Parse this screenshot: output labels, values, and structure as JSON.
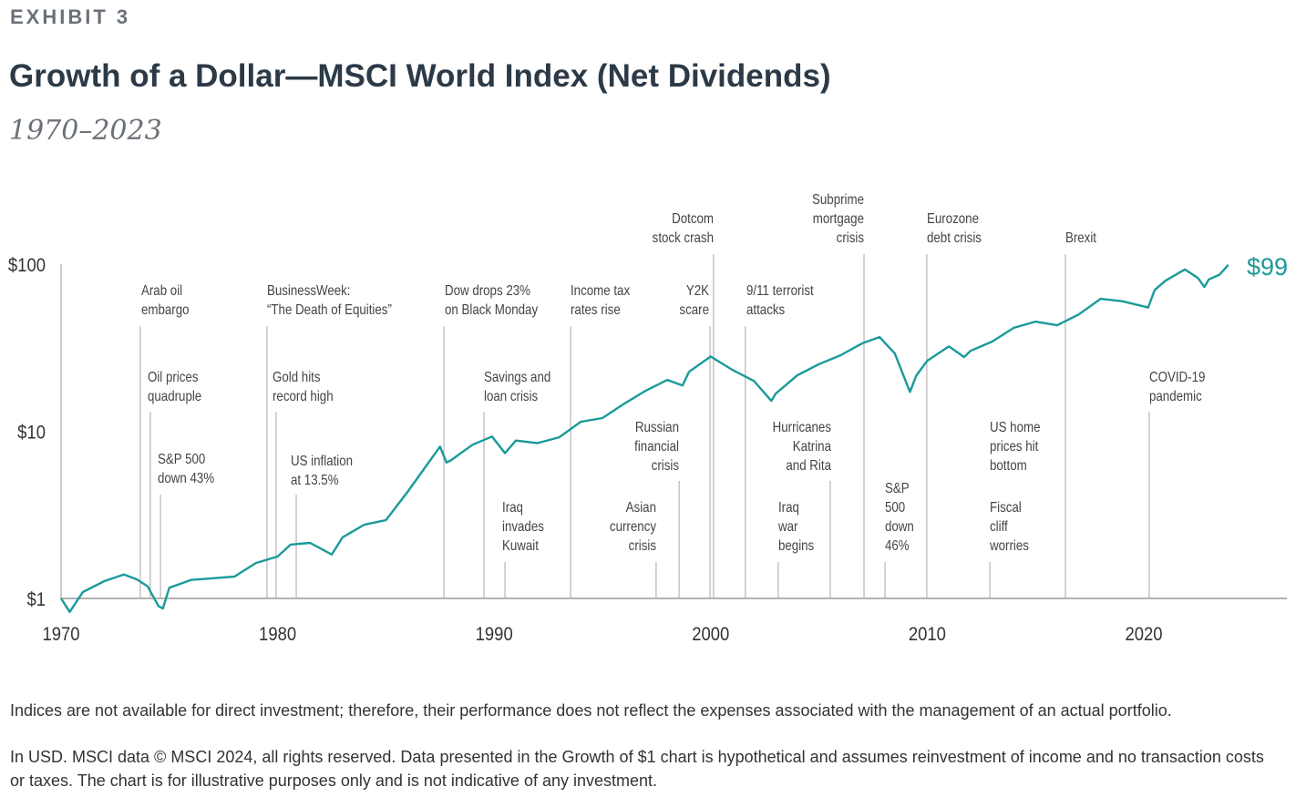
{
  "header": {
    "exhibit": "EXHIBIT 3",
    "title": "Growth of a Dollar—MSCI World Index (Net Dividends)",
    "subtitle": "1970–2023"
  },
  "chart_data": {
    "type": "line",
    "title": "Growth of a Dollar—MSCI World Index (Net Dividends)",
    "subtitle": "1970–2023",
    "y_scale": "log",
    "ylim": [
      0.8,
      110
    ],
    "xlim": [
      1970,
      2026.7
    ],
    "y_ticks": [
      {
        "value": 1,
        "label": "$1"
      },
      {
        "value": 10,
        "label": "$10"
      },
      {
        "value": 100,
        "label": "$100"
      }
    ],
    "x_ticks": [
      1970,
      1980,
      1990,
      2000,
      2010,
      2020
    ],
    "grid": false,
    "line_color": "#1a9a9a",
    "end_label": "$99",
    "series": [
      {
        "x": [
          1970,
          1970.4,
          1971,
          1972,
          1972.9,
          1973.5,
          1974,
          1974.5,
          1974.7,
          1975,
          1976,
          1977,
          1978,
          1979,
          1980,
          1980.6,
          1981.5,
          1982.5,
          1983,
          1984,
          1985,
          1986,
          1987.5,
          1987.8,
          1988,
          1989,
          1989.9,
          1990.5,
          1991,
          1992,
          1993,
          1994,
          1995,
          1996,
          1997,
          1998,
          1998.7,
          1999,
          2000,
          2001,
          2002,
          2002.8,
          2003,
          2004,
          2005,
          2006,
          2007,
          2007.8,
          2008.5,
          2009.2,
          2009.5,
          2010,
          2011,
          2011.7,
          2012,
          2013,
          2014,
          2015,
          2016,
          2017,
          2018,
          2019,
          2020.2,
          2020.5,
          2021,
          2021.9,
          2022.5,
          2022.8,
          2023,
          2023.5,
          2023.9
        ],
        "y": [
          1.0,
          0.83,
          1.09,
          1.27,
          1.39,
          1.3,
          1.18,
          0.9,
          0.87,
          1.16,
          1.29,
          1.32,
          1.35,
          1.63,
          1.78,
          2.1,
          2.15,
          1.83,
          2.32,
          2.76,
          2.94,
          4.34,
          8.1,
          6.5,
          6.7,
          8.3,
          9.3,
          7.4,
          8.8,
          8.5,
          9.2,
          11.4,
          12,
          14.6,
          17.5,
          20.3,
          18.8,
          22.7,
          28,
          23.3,
          20.0,
          15.2,
          16.8,
          21.6,
          25.2,
          28.5,
          33.6,
          36.6,
          29.2,
          17.2,
          21.6,
          26.4,
          32.2,
          27.8,
          30.3,
          34.4,
          41.6,
          45.3,
          43.1,
          50,
          62,
          60,
          55,
          70,
          79.6,
          93,
          82.6,
          73,
          81,
          86.6,
          99
        ]
      }
    ],
    "annotations": [
      {
        "year": 1973.66,
        "lines": [
          "Arab oil",
          "embargo"
        ]
      },
      {
        "year": 1974.12,
        "lines": [
          "Oil prices",
          "quadruple"
        ]
      },
      {
        "year": 1974.59,
        "lines": [
          "S&P 500",
          "down 43%"
        ]
      },
      {
        "year": 1979.51,
        "lines": [
          "BusinessWeek:",
          "“The Death  of Equities”"
        ]
      },
      {
        "year": 1979.93,
        "lines": [
          "Gold hits",
          "record high"
        ]
      },
      {
        "year": 1980.86,
        "lines": [
          "US inflation",
          "at 13.5%"
        ]
      },
      {
        "year": 1987.68,
        "lines": [
          "Dow drops 23%",
          "on Black Monday"
        ]
      },
      {
        "year": 1989.53,
        "lines": [
          "Savings and",
          "loan crisis"
        ]
      },
      {
        "year": 1990.5,
        "lines": [
          "Iraq",
          "invades",
          "Kuwait"
        ]
      },
      {
        "year": 1993.53,
        "lines": [
          "Income tax",
          "rates rise"
        ]
      },
      {
        "year": 1997.48,
        "lines": [
          "Asian",
          "currency",
          "crisis"
        ]
      },
      {
        "year": 1998.54,
        "lines": [
          "Russian",
          "financial",
          "crisis"
        ]
      },
      {
        "year": 1999.97,
        "lines": [
          "Y2K",
          "scare"
        ]
      },
      {
        "year": 2000.13,
        "lines": [
          "Dotcom",
          "stock crash"
        ]
      },
      {
        "year": 2001.6,
        "lines": [
          "9/11 terrorist",
          "attacks"
        ]
      },
      {
        "year": 2003.12,
        "lines": [
          "Iraq",
          "war",
          "begins"
        ]
      },
      {
        "year": 2005.52,
        "lines": [
          "Hurricanes",
          "Katrina",
          "and Rita"
        ]
      },
      {
        "year": 2007.08,
        "lines": [
          "Subprime",
          "mortgage",
          "crisis"
        ]
      },
      {
        "year": 2008.05,
        "lines": [
          "S&P",
          "500",
          "down",
          "46%"
        ]
      },
      {
        "year": 2009.98,
        "lines": [
          "Eurozone",
          "debt crisis"
        ]
      },
      {
        "year": 2012.89,
        "lines": [
          "Fiscal",
          "cliff",
          "worries"
        ]
      },
      {
        "year": null,
        "lines": [
          "US home",
          "prices hit",
          "bottom"
        ]
      },
      {
        "year": 2016.38,
        "lines": [
          "Brexit"
        ]
      },
      {
        "year": 2020.25,
        "lines": [
          "COVID-19",
          "pandemic"
        ]
      }
    ]
  },
  "notes": [
    "Indices are not available for direct investment; therefore, their performance does not reflect the expenses associated with the management of an actual portfolio.",
    "In USD. MSCI data © MSCI 2024, all rights reserved. Data presented in the Growth of $1 chart is hypothetical and assumes reinvestment of income and no transaction costs or taxes. The chart is for illustrative purposes only and is not indicative of any investment."
  ]
}
